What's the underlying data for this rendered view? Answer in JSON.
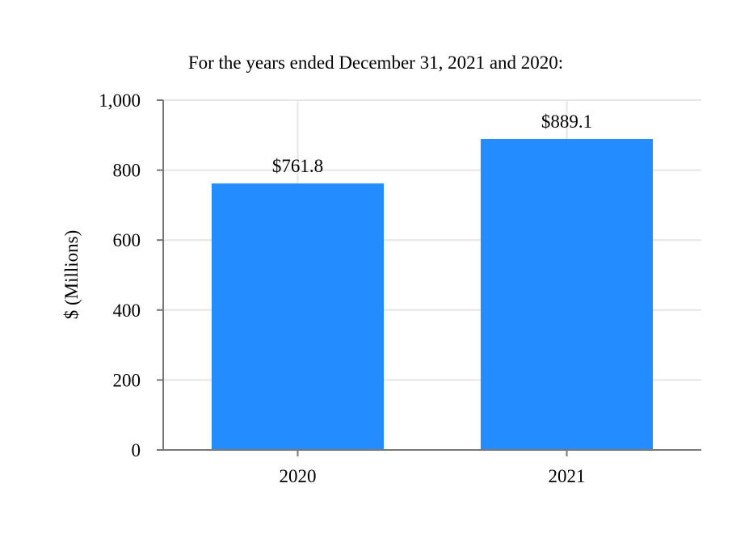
{
  "chart_data": {
    "type": "bar",
    "title": "For the years ended December 31, 2021 and 2020:",
    "xlabel": "",
    "ylabel": "$ (Millions)",
    "categories": [
      "2020",
      "2021"
    ],
    "values": [
      761.8,
      889.1
    ],
    "data_labels": [
      "$761.8",
      "$889.1"
    ],
    "ylim": [
      0,
      1000
    ],
    "yticks": [
      0,
      200,
      400,
      600,
      800,
      1000
    ],
    "ytick_labels": [
      "0",
      "200",
      "400",
      "600",
      "800",
      "1,000"
    ],
    "grid": true,
    "legend": "none",
    "colors": {
      "bar": "#238cfe",
      "grid": "#e6e6e6",
      "axis": "#777777",
      "text": "#000000"
    }
  }
}
